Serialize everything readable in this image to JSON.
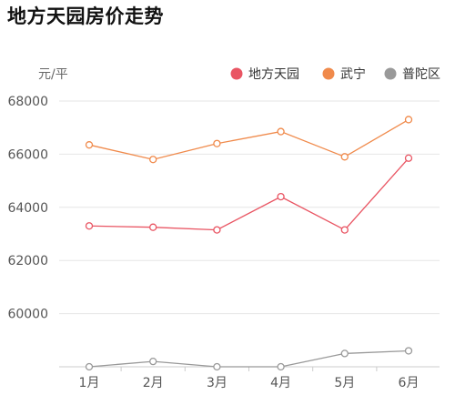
{
  "title": "地方天园房价走势",
  "chart_data": {
    "type": "line",
    "title": "地方天园房价走势",
    "unit": "元/平",
    "categories": [
      "1月",
      "2月",
      "3月",
      "4月",
      "5月",
      "6月"
    ],
    "ylim": [
      58000,
      68000
    ],
    "yticks": [
      60000,
      62000,
      64000,
      66000,
      68000
    ],
    "grid": true,
    "legend_position": "top-right",
    "series": [
      {
        "name": "地方天园",
        "color": "#e95563",
        "values": [
          63300,
          63250,
          63150,
          64400,
          63150,
          65850
        ]
      },
      {
        "name": "武宁",
        "color": "#f08a4b",
        "values": [
          66350,
          65800,
          66400,
          66850,
          65900,
          67300
        ]
      },
      {
        "name": "普陀区",
        "color": "#999999",
        "values": [
          58000,
          58200,
          58000,
          58000,
          58500,
          58600
        ]
      }
    ]
  }
}
